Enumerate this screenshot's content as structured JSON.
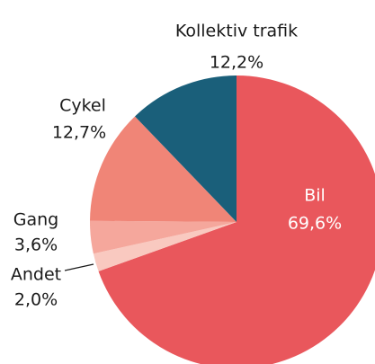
{
  "chart_data": {
    "type": "pie",
    "categories": [
      "Bil",
      "Andet",
      "Gang",
      "Cykel",
      "Kollektiv trafik"
    ],
    "values": [
      69.6,
      2.0,
      3.6,
      12.7,
      12.2
    ],
    "value_labels": [
      "69,6%",
      "2,0%",
      "3,6%",
      "12,7%",
      "12,2%"
    ],
    "colors": [
      "#e9575c",
      "#f9c9c0",
      "#f5a79c",
      "#f08577",
      "#1a5f7a"
    ]
  }
}
